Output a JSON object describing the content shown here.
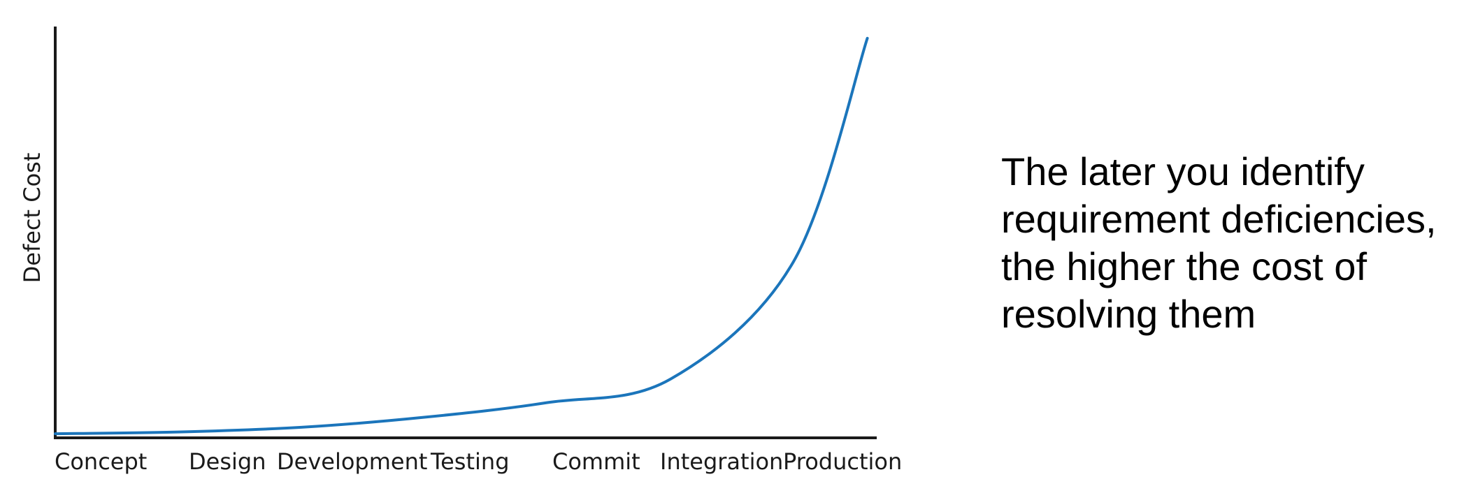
{
  "chart_data": {
    "type": "line",
    "title": "",
    "xlabel": "",
    "ylabel": "Defect Cost",
    "categories": [
      "Concept",
      "Design",
      "Development",
      "Testing",
      "Commit",
      "Integration",
      "Production"
    ],
    "series": [
      {
        "values": [
          0.07,
          0.1,
          0.18,
          0.35,
          0.6,
          1.0,
          3.0,
          6.8
        ],
        "x": [
          0,
          1,
          2,
          3,
          4,
          5,
          6,
          6.6
        ]
      }
    ],
    "ylim": [
      0,
      7
    ],
    "grid": false,
    "legend": "none",
    "colors": {
      "line": "#1b75bb",
      "axis": "#1a1a1a"
    }
  },
  "caption": {
    "lines": [
      "The later you identify",
      "requirement deficiencies,",
      "the higher the cost of",
      "resolving them"
    ]
  }
}
